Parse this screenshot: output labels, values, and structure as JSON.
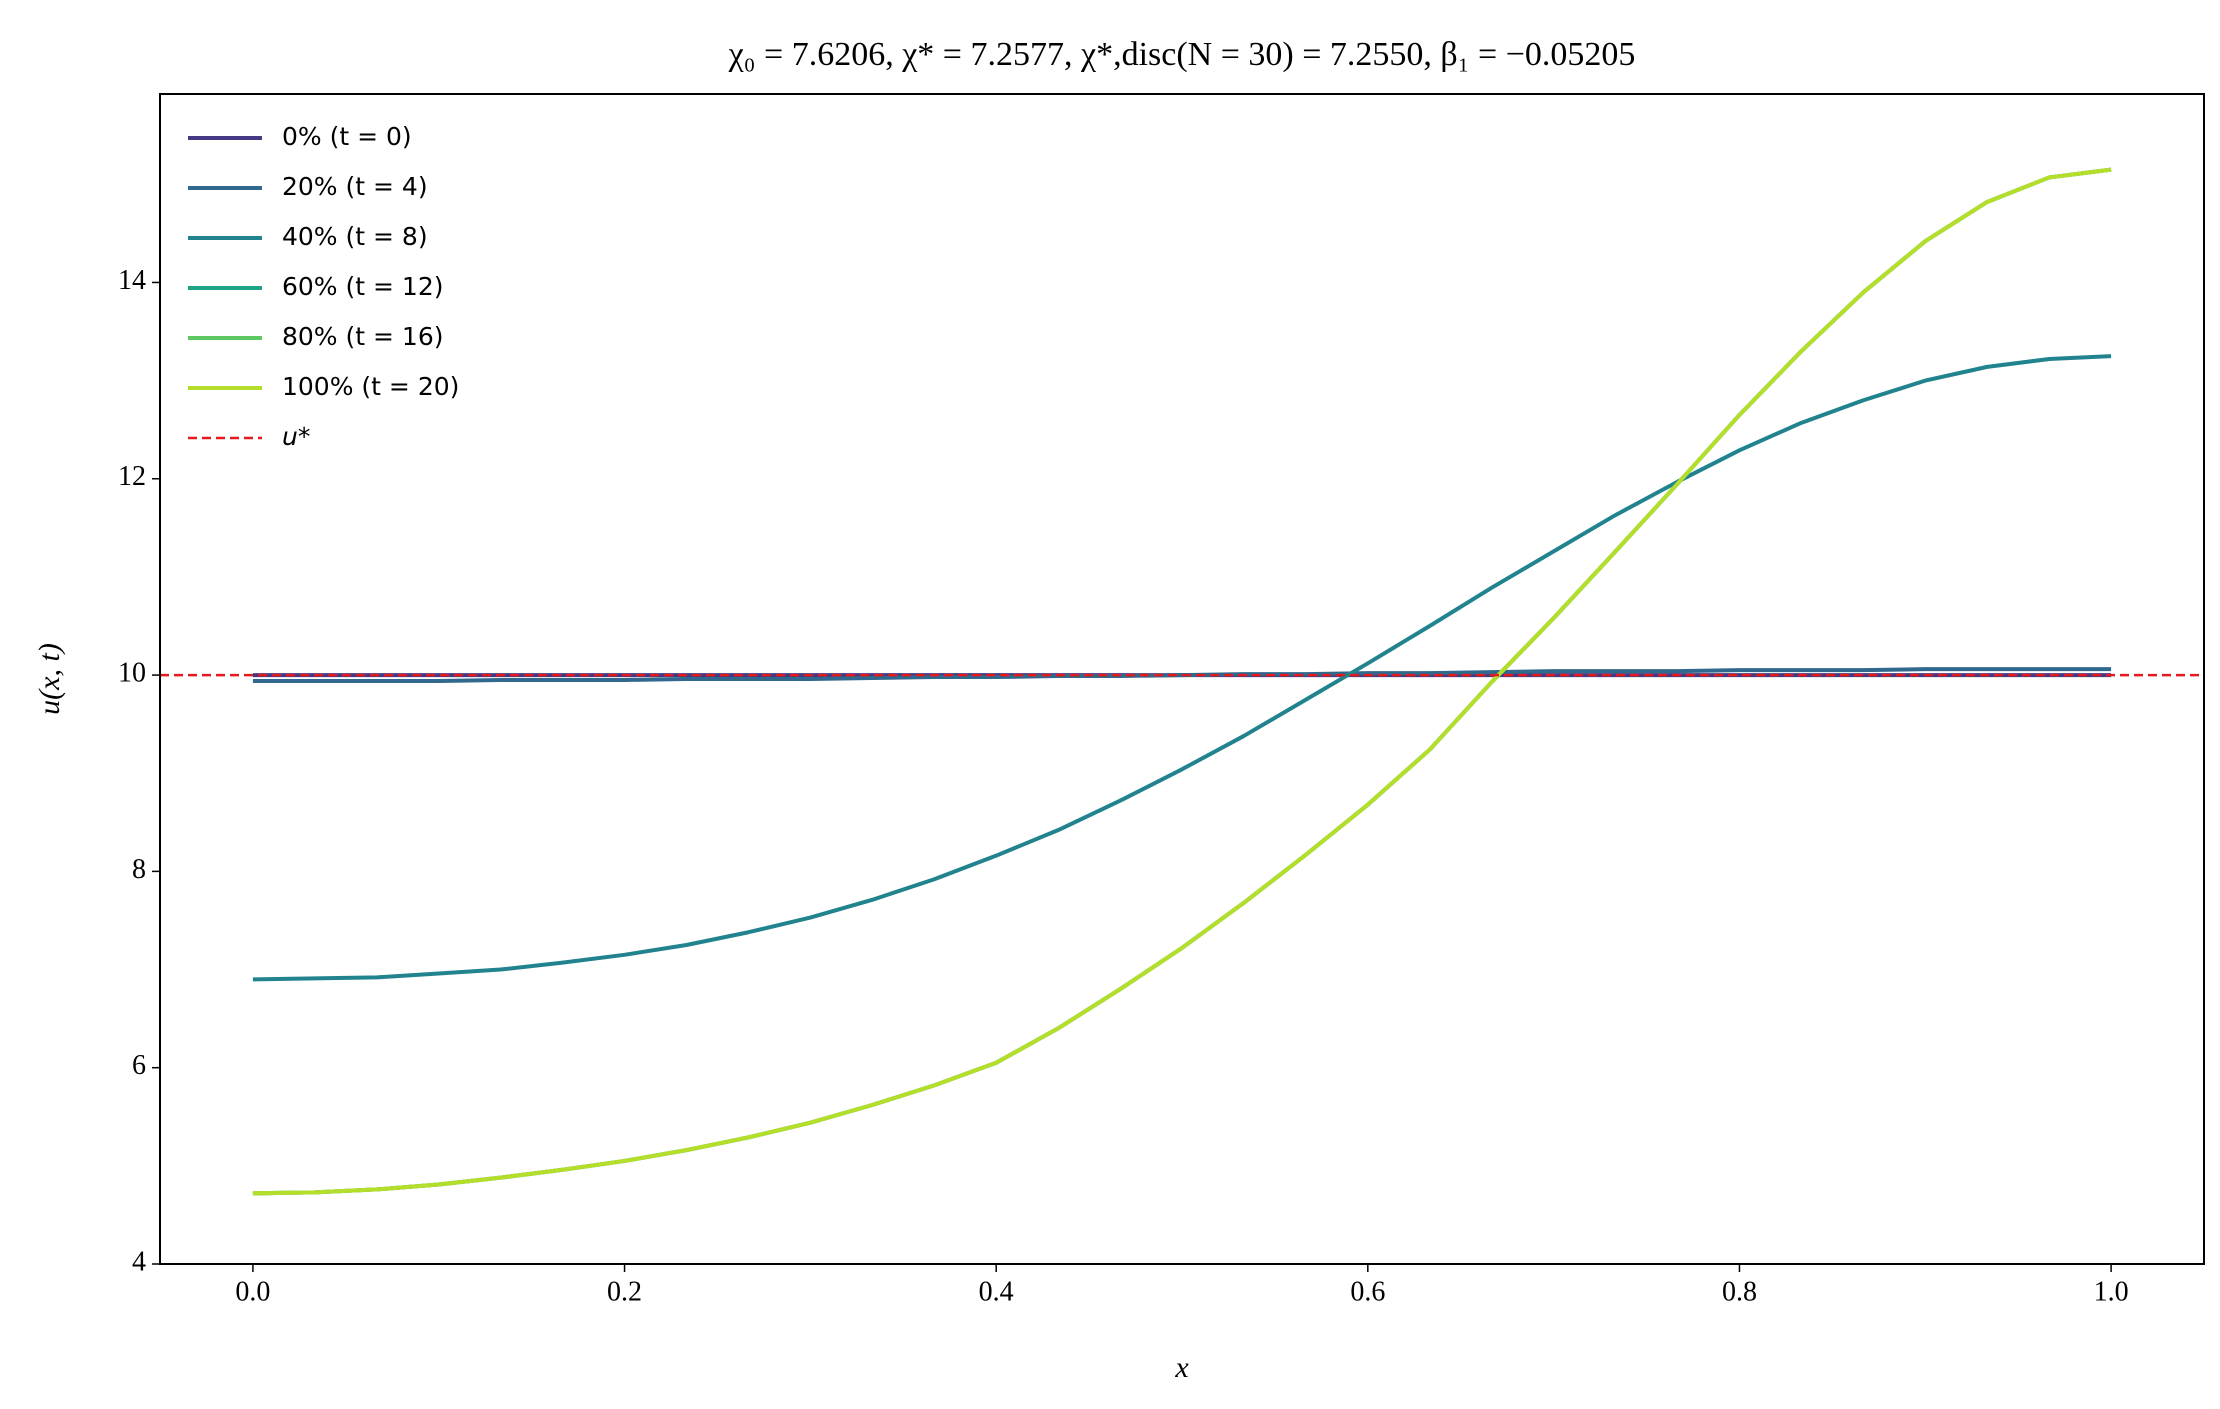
{
  "chart_data": {
    "type": "line",
    "title": "χ₀ = 7.6206,  χ* = 7.2577,  χ*,disc(N = 30) = 7.2550,  β₁ = −0.05205",
    "x_label": "x",
    "y_label": "u(x, t)",
    "x": [
      0,
      0.0333,
      0.0667,
      0.1,
      0.1333,
      0.1667,
      0.2,
      0.2333,
      0.2667,
      0.3,
      0.3333,
      0.3667,
      0.4,
      0.4333,
      0.4667,
      0.5,
      0.5333,
      0.5667,
      0.6,
      0.6333,
      0.6667,
      0.7,
      0.7333,
      0.7667,
      0.8,
      0.8333,
      0.8667,
      0.9,
      0.9333,
      0.9667,
      1
    ],
    "series": [
      {
        "name": "0% (t = 0)",
        "color": "#443a83",
        "values": [
          10,
          10,
          10,
          10,
          10,
          10,
          10,
          10,
          10,
          10,
          10,
          10,
          10,
          10,
          10,
          10,
          10,
          10,
          10,
          10,
          10,
          10,
          10,
          10,
          10,
          10,
          10,
          10,
          10,
          10,
          10
        ]
      },
      {
        "name": "20% (t = 4)",
        "color": "#31688e",
        "values": [
          9.94,
          9.94,
          9.94,
          9.94,
          9.95,
          9.95,
          9.95,
          9.96,
          9.96,
          9.96,
          9.97,
          9.98,
          9.98,
          9.99,
          9.99,
          10.0,
          10.01,
          10.01,
          10.02,
          10.02,
          10.03,
          10.04,
          10.04,
          10.04,
          10.05,
          10.05,
          10.05,
          10.06,
          10.06,
          10.06,
          10.06
        ]
      },
      {
        "name": "40% (t = 8)",
        "color": "#21838e",
        "values": [
          6.9,
          6.91,
          6.92,
          6.96,
          7.0,
          7.07,
          7.15,
          7.25,
          7.38,
          7.53,
          7.71,
          7.92,
          8.16,
          8.42,
          8.72,
          9.04,
          9.38,
          9.75,
          10.12,
          10.5,
          10.89,
          11.26,
          11.63,
          11.97,
          12.29,
          12.57,
          12.8,
          13.0,
          13.14,
          13.22,
          13.25
        ]
      },
      {
        "name": "60% (t = 12)",
        "color": "#20a486",
        "values": [
          4.72,
          4.73,
          4.76,
          4.81,
          4.88,
          4.96,
          5.05,
          5.16,
          5.29,
          5.44,
          5.62,
          5.82,
          6.05,
          6.4,
          6.8,
          7.22,
          7.68,
          8.17,
          8.68,
          9.24,
          9.93,
          10.58,
          11.26,
          11.95,
          12.65,
          13.3,
          13.9,
          14.42,
          14.82,
          15.07,
          15.15
        ]
      },
      {
        "name": "80% (t = 16)",
        "color": "#5ec962",
        "values": [
          4.72,
          4.73,
          4.76,
          4.81,
          4.88,
          4.96,
          5.05,
          5.16,
          5.29,
          5.44,
          5.62,
          5.82,
          6.05,
          6.4,
          6.8,
          7.22,
          7.68,
          8.17,
          8.68,
          9.24,
          9.93,
          10.58,
          11.26,
          11.95,
          12.65,
          13.3,
          13.9,
          14.42,
          14.82,
          15.07,
          15.15
        ]
      },
      {
        "name": "100% (t = 20)",
        "color": "#b5de2b",
        "values": [
          4.72,
          4.73,
          4.76,
          4.81,
          4.88,
          4.96,
          5.05,
          5.16,
          5.29,
          5.44,
          5.62,
          5.82,
          6.05,
          6.4,
          6.8,
          7.22,
          7.68,
          8.17,
          8.68,
          9.24,
          9.93,
          10.58,
          11.26,
          11.95,
          12.65,
          13.3,
          13.9,
          14.42,
          14.82,
          15.07,
          15.15
        ]
      }
    ],
    "hline": {
      "name": "u*",
      "value": 10,
      "color": "#e41a1c"
    },
    "xlim": [
      -0.05,
      1.05
    ],
    "ylim": [
      4,
      15.92
    ],
    "xticks": [
      {
        "value": 0,
        "label": "0.0"
      },
      0.2,
      0.4,
      0.6,
      0.8,
      {
        "value": 1,
        "label": "1.0"
      }
    ],
    "yticks": [
      4,
      6,
      8,
      10,
      12,
      14
    ],
    "legend": "upper-left",
    "grid": false
  }
}
